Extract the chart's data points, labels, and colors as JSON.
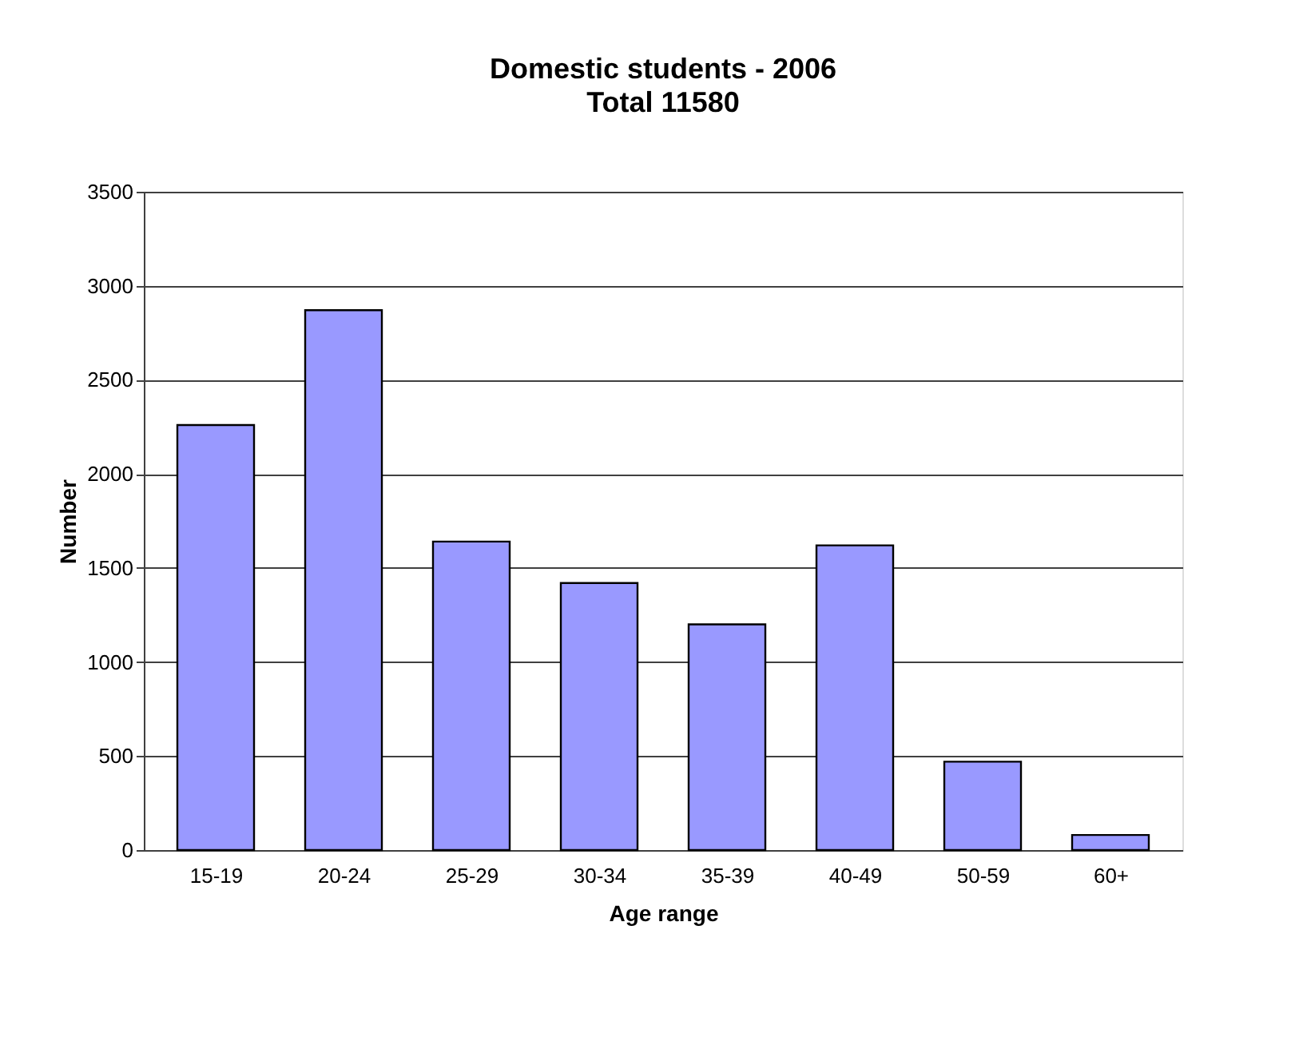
{
  "chart_data": {
    "type": "bar",
    "title": "Domestic students - 2006",
    "subtitle": "Total 11580",
    "xlabel": "Age range",
    "ylabel": "Number",
    "categories": [
      "15-19",
      "20-24",
      "25-29",
      "30-34",
      "35-39",
      "40-49",
      "50-59",
      "60+"
    ],
    "values": [
      2260,
      2870,
      1640,
      1420,
      1200,
      1620,
      470,
      80
    ],
    "color": "#9999ff",
    "ylim": [
      0,
      3500
    ],
    "yticks": [
      0,
      500,
      1000,
      1500,
      2000,
      2500,
      3000,
      3500
    ],
    "grid": "y"
  }
}
